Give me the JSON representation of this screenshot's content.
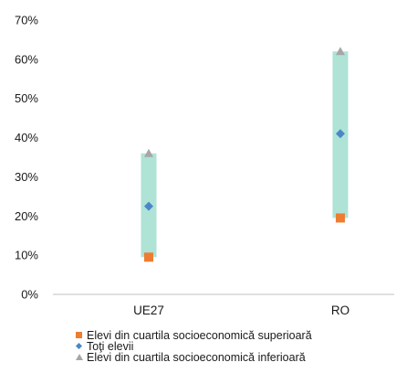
{
  "chart_data": {
    "type": "scatter",
    "categories": [
      "UE27",
      "RO"
    ],
    "series": [
      {
        "name": "Elevi din cuartila socioeconomică superioară",
        "marker": "square",
        "color": "#ed7d31",
        "values": [
          9.5,
          19.5
        ]
      },
      {
        "name": "Toţi elevii",
        "marker": "diamond",
        "color": "#4a86c8",
        "values": [
          22.5,
          41
        ]
      },
      {
        "name": "Elevi din cuartila socioeconomică inferioară",
        "marker": "triangle",
        "color": "#a6a6a6",
        "values": [
          36,
          62
        ]
      }
    ],
    "range_bar_color": "#aee3d6",
    "ylim": [
      0,
      70
    ],
    "yticks": [
      "0%",
      "10%",
      "20%",
      "30%",
      "40%",
      "50%",
      "60%",
      "70%"
    ],
    "title": "",
    "xlabel": "",
    "ylabel": "",
    "grid": false,
    "legend_position": "bottom"
  }
}
